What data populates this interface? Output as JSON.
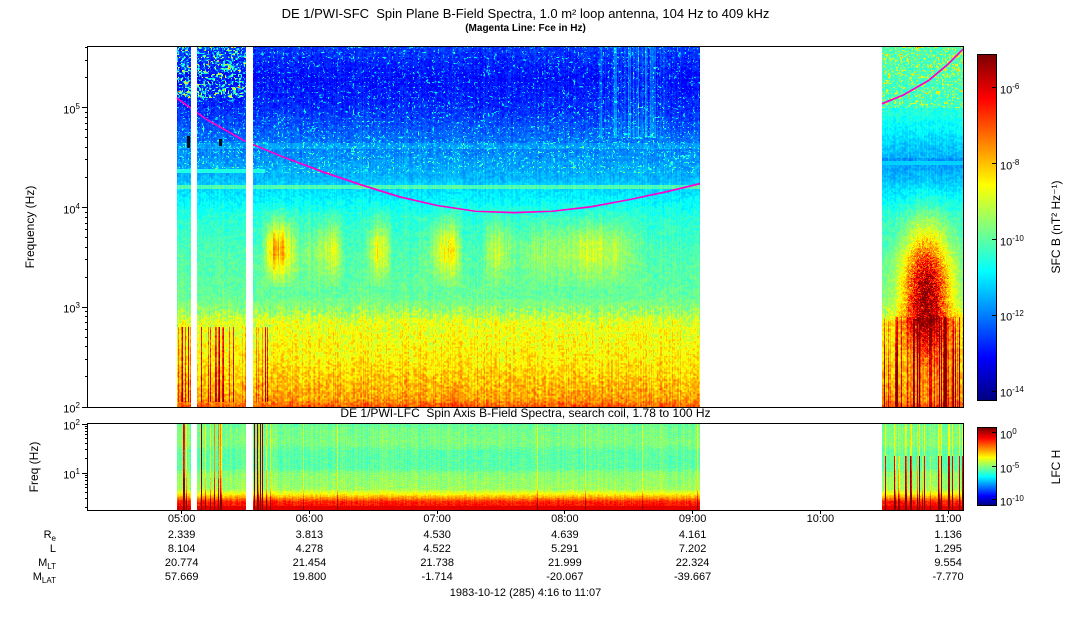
{
  "colors": {
    "fce_line": "#ff00cc",
    "axis": "#000000",
    "background": "#ffffff"
  },
  "titles": {
    "main": "DE 1/PWI-SFC  Spin Plane B-Field Spectra, 1.0 m² loop antenna, 104 Hz to 409 kHz",
    "sub": "(Magenta Line: Fce in Hz)",
    "lfc": "DE 1/PWI-LFC  Spin Axis B-Field Spectra, search coil, 1.78 to 100 Hz",
    "caption": "1983-10-12 (285) 4:16 to 11:07"
  },
  "sfc_panel": {
    "ylabel": "Frequency (Hz)",
    "ytick_base": "10",
    "ytick_exps": [
      "5",
      "4",
      "3",
      "2"
    ],
    "colorbar": {
      "label": "SFC B (nT² Hz⁻¹)",
      "tick_base": "10",
      "tick_exps": [
        "-6",
        "-8",
        "-10",
        "-12",
        "-14"
      ]
    }
  },
  "lfc_panel": {
    "ylabel": "Freq (Hz)",
    "ytick_base": "10",
    "ytick_exps": [
      "2",
      "1"
    ],
    "colorbar": {
      "label": "LFC H",
      "tick_base": "10",
      "tick_exps": [
        "0",
        "-5",
        "-10"
      ]
    }
  },
  "xaxis": {
    "tick_labels": [
      "05:00",
      "06:00",
      "07:00",
      "08:00",
      "09:00",
      "10:00",
      "11:00"
    ]
  },
  "chart_data": [
    {
      "type": "heatmap",
      "name": "SFC spectrogram",
      "title": "DE 1/PWI-SFC Spin Plane B-Field Spectra, 1.0 m² loop antenna, 104 Hz to 409 kHz",
      "colormap": "jet",
      "x_range_hours_ut": [
        4.2667,
        11.1167
      ],
      "y_range_hz": [
        100,
        409000
      ],
      "y_scale": "log",
      "color_label": "SFC B (nT² Hz⁻¹)",
      "color_range": [
        1e-14,
        1e-06
      ],
      "data_segments_ut": [
        [
          4.96,
          5.07
        ],
        [
          5.12,
          5.5
        ],
        [
          5.56,
          9.06
        ],
        [
          10.48,
          11.117
        ]
      ],
      "fce_line_ut_hz": {
        "main": [
          [
            4.96,
            126000
          ],
          [
            5.2,
            76000
          ],
          [
            5.5,
            46000
          ],
          [
            5.8,
            32000
          ],
          [
            6.1,
            23000
          ],
          [
            6.4,
            17000
          ],
          [
            6.7,
            12900
          ],
          [
            7.0,
            10500
          ],
          [
            7.3,
            9200
          ],
          [
            7.6,
            8900
          ],
          [
            7.9,
            9200
          ],
          [
            8.2,
            10200
          ],
          [
            8.5,
            12000
          ],
          [
            8.8,
            14500
          ],
          [
            9.06,
            17400
          ]
        ],
        "right": [
          [
            10.48,
            110000
          ],
          [
            10.65,
            135000
          ],
          [
            10.85,
            190000
          ],
          [
            11.0,
            275000
          ],
          [
            11.117,
            390000
          ]
        ]
      },
      "features": [
        "intense broadband emission 100 Hz - 900 Hz (yellow/orange, red streaks at band bottom)",
        "chorus/hiss patches 2-7 kHz from ~05:40 to ~08:30 (yellow-green)",
        "narrowband cyan line near 16 kHz across 05:00-09:00",
        "weaker cyan line near 23 kHz 05:00-05:40",
        "dark blue background above ~30 kHz",
        "green speckle near 200-400 kHz at 05:00-05:30 and after 10:30",
        "funnel-shaped intense emission (red) 300 Hz - 5 kHz near 10:45-11:00",
        "black instrument marks near 05:03 and 05:18 at ~45 kHz",
        "magenta overplotted line = electron cyclotron frequency Fce",
        "white vertical stripes = data gaps"
      ]
    },
    {
      "type": "heatmap",
      "name": "LFC spectrogram",
      "title": "DE 1/PWI-LFC Spin Axis B-Field Spectra, search coil, 1.78 to 100 Hz",
      "colormap": "jet",
      "x_range_hours_ut": [
        4.2667,
        11.1167
      ],
      "y_range_hz": [
        1.78,
        100
      ],
      "y_scale": "log",
      "color_label": "LFC H",
      "data_segments_ut": [
        [
          4.96,
          5.07
        ],
        [
          5.12,
          5.5
        ],
        [
          5.56,
          9.06
        ],
        [
          10.48,
          11.117
        ]
      ],
      "features": [
        "red/orange band below ~4 Hz",
        "green background 5-100 Hz",
        "slightly darker green band 12-30 Hz",
        "red vertical bursts 05:00-05:20 and just after second data gap",
        "orange bursts below ~20 Hz 10:30-11:00"
      ]
    },
    {
      "type": "table",
      "name": "ephemeris",
      "columns": [
        "05:00",
        "06:00",
        "07:00",
        "08:00",
        "09:00",
        "10:00",
        "11:00"
      ],
      "rows": [
        {
          "label_base": "R",
          "label_sub": "e",
          "values": [
            "2.339",
            "3.813",
            "4.530",
            "4.639",
            "4.161",
            "",
            "1.136"
          ]
        },
        {
          "label_base": "L",
          "label_sub": "",
          "values": [
            "8.104",
            "4.278",
            "4.522",
            "5.291",
            "7.202",
            "",
            "1.295"
          ]
        },
        {
          "label_base": "M",
          "label_sub": "LT",
          "values": [
            "20.774",
            "21.454",
            "21.738",
            "21.999",
            "22.324",
            "",
            "9.554"
          ]
        },
        {
          "label_base": "M",
          "label_sub": "LAT",
          "values": [
            "57.669",
            "19.800",
            "-1.714",
            "-20.067",
            "-39.667",
            "",
            "-7.770"
          ]
        }
      ]
    }
  ]
}
